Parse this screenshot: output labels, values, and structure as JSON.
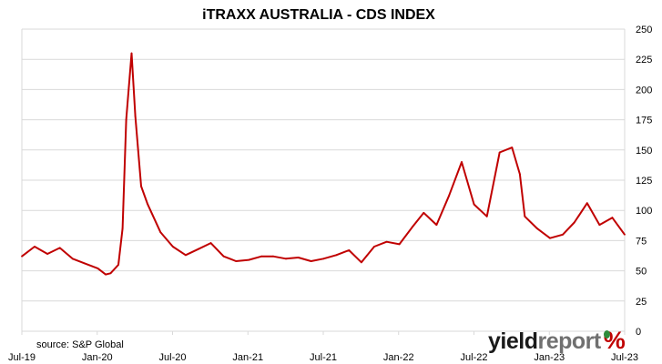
{
  "chart_data": {
    "type": "line",
    "title": "iTRAXX AUSTRALIA - CDS INDEX",
    "xlabel": "",
    "ylabel": "",
    "ylim": [
      0,
      250
    ],
    "y_ticks": [
      0,
      25,
      50,
      75,
      100,
      125,
      150,
      175,
      200,
      225,
      250
    ],
    "x_ticks": [
      "Jul-19",
      "Jan-20",
      "Jul-20",
      "Jan-21",
      "Jul-21",
      "Jan-22",
      "Jul-22",
      "Jan-23",
      "Jul-23"
    ],
    "grid": "horizontal",
    "series": [
      {
        "color": "#c00000",
        "x": [
          "2019-07-01",
          "2019-08-01",
          "2019-09-01",
          "2019-10-01",
          "2019-11-01",
          "2019-12-01",
          "2020-01-01",
          "2020-01-20",
          "2020-02-01",
          "2020-02-20",
          "2020-03-01",
          "2020-03-10",
          "2020-03-23",
          "2020-04-01",
          "2020-04-15",
          "2020-05-01",
          "2020-06-01",
          "2020-07-01",
          "2020-08-01",
          "2020-09-01",
          "2020-10-01",
          "2020-11-01",
          "2020-12-01",
          "2021-01-01",
          "2021-02-01",
          "2021-03-01",
          "2021-04-01",
          "2021-05-01",
          "2021-06-01",
          "2021-07-01",
          "2021-08-01",
          "2021-09-01",
          "2021-10-01",
          "2021-11-01",
          "2021-12-01",
          "2022-01-01",
          "2022-02-01",
          "2022-03-01",
          "2022-04-01",
          "2022-05-01",
          "2022-06-01",
          "2022-07-01",
          "2022-08-01",
          "2022-09-01",
          "2022-10-01",
          "2022-10-20",
          "2022-11-01",
          "2022-12-01",
          "2023-01-01",
          "2023-02-01",
          "2023-03-01",
          "2023-04-01",
          "2023-05-01",
          "2023-06-01",
          "2023-07-01"
        ],
        "y": [
          62,
          70,
          64,
          69,
          60,
          56,
          52,
          47,
          48,
          55,
          85,
          175,
          230,
          178,
          120,
          105,
          82,
          70,
          63,
          68,
          73,
          62,
          58,
          59,
          62,
          62,
          60,
          61,
          58,
          60,
          63,
          67,
          57,
          70,
          74,
          72,
          86,
          98,
          88,
          112,
          140,
          105,
          95,
          148,
          152,
          130,
          95,
          85,
          77,
          80,
          90,
          106,
          88,
          94,
          80
        ]
      }
    ]
  },
  "source_note": "source: S&P Global",
  "logo": {
    "word1": "yield",
    "word2": "report",
    "symbol": "%"
  },
  "colors": {
    "line": "#c00000",
    "grid": "#d9d9d9",
    "axis": "#d9d9d9",
    "logo_green": "#2e8b3a"
  }
}
